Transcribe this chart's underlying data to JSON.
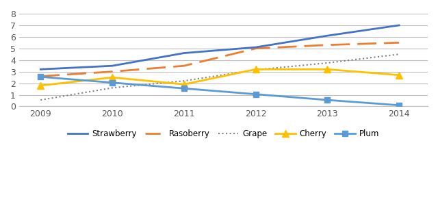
{
  "years": [
    2009,
    2010,
    2011,
    2012,
    2013,
    2014
  ],
  "strawberry": [
    3.2,
    3.5,
    4.6,
    5.1,
    6.1,
    7.0
  ],
  "raspberry": [
    2.6,
    3.0,
    3.5,
    5.0,
    5.3,
    5.5
  ],
  "grape": [
    0.55,
    1.6,
    2.2,
    3.15,
    3.75,
    4.5
  ],
  "cherry": [
    1.8,
    2.5,
    1.9,
    3.2,
    3.2,
    2.7
  ],
  "plum": [
    2.55,
    2.05,
    1.55,
    1.05,
    0.55,
    0.1
  ],
  "strawberry_color": "#4472C4",
  "raspberry_color": "#ED7D31",
  "grape_color": "#808080",
  "cherry_color": "#FFC000",
  "plum_color": "#5B9BD5",
  "ylim": [
    0,
    8
  ],
  "yticks": [
    0,
    1,
    2,
    3,
    4,
    5,
    6,
    7,
    8
  ],
  "background_color": "#FFFFFF",
  "grid_color": "#BFBFBF"
}
